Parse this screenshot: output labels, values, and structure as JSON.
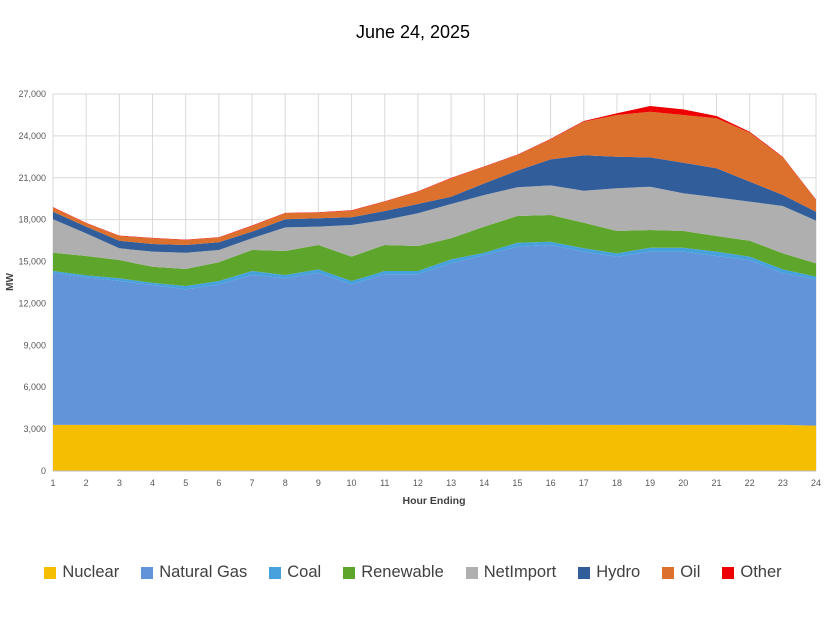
{
  "chart_data": {
    "type": "area",
    "stacked": true,
    "title": "June 24, 2025",
    "xlabel": "Hour Ending",
    "ylabel": "MW",
    "ylim": [
      0,
      27000
    ],
    "yticks": [
      0,
      3000,
      6000,
      9000,
      12000,
      15000,
      18000,
      21000,
      24000,
      27000
    ],
    "ytick_labels": [
      "0",
      "3,000",
      "6,000",
      "9,000",
      "12,000",
      "15,000",
      "18,000",
      "21,000",
      "24,000",
      "27,000"
    ],
    "grid": true,
    "legend_position": "bottom",
    "x": [
      1,
      2,
      3,
      4,
      5,
      6,
      7,
      8,
      9,
      10,
      11,
      12,
      13,
      14,
      15,
      16,
      17,
      18,
      19,
      20,
      21,
      22,
      23,
      24
    ],
    "series": [
      {
        "name": "Nuclear",
        "color": "#F5BE00",
        "values": [
          3300,
          3300,
          3300,
          3300,
          3300,
          3300,
          3300,
          3300,
          3300,
          3300,
          3300,
          3300,
          3300,
          3300,
          3300,
          3300,
          3300,
          3300,
          3300,
          3300,
          3300,
          3300,
          3300,
          3250
        ]
      },
      {
        "name": "Natural Gas",
        "color": "#6294D9",
        "values": [
          10880,
          10570,
          10310,
          10020,
          9710,
          10070,
          10740,
          10500,
          10900,
          10070,
          10790,
          10790,
          11570,
          12170,
          12760,
          12890,
          12410,
          12050,
          12410,
          12410,
          12100,
          11810,
          10860,
          10480
        ]
      },
      {
        "name": "Coal",
        "color": "#47A1DC",
        "values": [
          140,
          150,
          190,
          150,
          240,
          240,
          280,
          240,
          240,
          240,
          230,
          230,
          290,
          160,
          290,
          230,
          240,
          240,
          280,
          280,
          310,
          240,
          280,
          190
        ]
      },
      {
        "name": "Renewable",
        "color": "#5DA52B",
        "values": [
          1310,
          1380,
          1310,
          1160,
          1220,
          1340,
          1510,
          1720,
          1750,
          1740,
          1870,
          1790,
          1510,
          1870,
          1910,
          1910,
          1830,
          1600,
          1270,
          1200,
          1120,
          1140,
          1150,
          950
        ]
      },
      {
        "name": "NetImport",
        "color": "#AFAFAF",
        "values": [
          2400,
          1620,
          840,
          1080,
          1160,
          880,
          840,
          1690,
          1310,
          2270,
          1790,
          2350,
          2450,
          2270,
          2060,
          2130,
          2290,
          3060,
          3100,
          2700,
          2770,
          2800,
          3390,
          3060
        ]
      },
      {
        "name": "Hydro",
        "color": "#315D9B",
        "values": [
          540,
          480,
          540,
          550,
          560,
          550,
          470,
          580,
          600,
          550,
          640,
          660,
          520,
          830,
          1190,
          1860,
          2540,
          2260,
          2100,
          2190,
          2080,
          1430,
          790,
          640
        ]
      },
      {
        "name": "Oil",
        "color": "#DC702D",
        "values": [
          290,
          240,
          340,
          410,
          350,
          330,
          410,
          430,
          400,
          470,
          670,
          880,
          1320,
          1190,
          1120,
          1430,
          2410,
          2990,
          3270,
          3420,
          3580,
          3510,
          2690,
          840
        ]
      },
      {
        "name": "Other",
        "color": "#EE0000",
        "values": [
          40,
          30,
          30,
          30,
          30,
          30,
          30,
          30,
          30,
          30,
          30,
          30,
          30,
          30,
          30,
          40,
          50,
          120,
          410,
          400,
          160,
          70,
          40,
          30
        ]
      }
    ]
  }
}
